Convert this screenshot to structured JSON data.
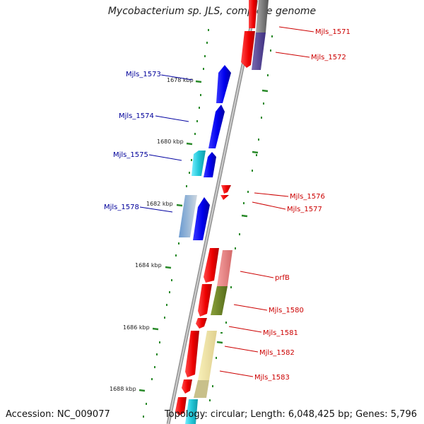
{
  "title": "Mycobacterium sp. JLS, complete genome",
  "accession": "Accession: NC_009077",
  "topology": "Topology: circular; Length: 6,048,425 bp; Genes: 5,796",
  "ticks": [
    "1678 kbp",
    "1680 kbp",
    "1682 kbp",
    "1684 kbp",
    "1686 kbp",
    "1688 kbp"
  ],
  "labels_left": [
    "Mjls_1573",
    "Mjls_1574",
    "Mjls_1575",
    "Mjls_1578"
  ],
  "labels_right": [
    "Mjls_1571",
    "Mjls_1572",
    "Mjls_1576",
    "Mjls_1577",
    "prfB",
    "Mjls_1580",
    "Mjls_1581",
    "Mjls_1582",
    "Mjls_1583"
  ],
  "colors": {
    "forward": "#0000ee",
    "reverse": "#ee0000",
    "tick": "#2a8a2a",
    "label_left": "#00009a",
    "label_right": "#cc0000",
    "backbone": "#8a8a8a"
  }
}
